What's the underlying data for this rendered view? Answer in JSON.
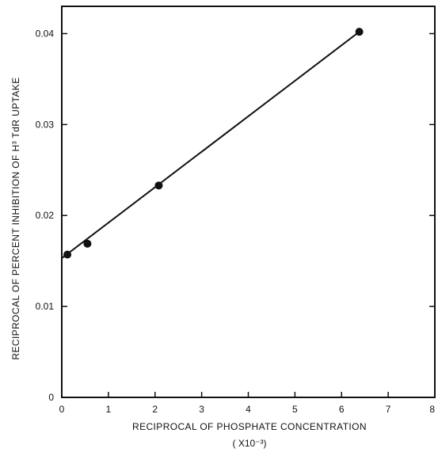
{
  "chart_data": {
    "type": "scatter",
    "title": "",
    "xlabel": "RECIPROCAL OF PHOSPHATE CONCENTRATION",
    "xlabel_unit": "( X10⁻³)",
    "ylabel": "RECIPROCAL OF PERCENT INHIBITION OF H³ TdR UPTAKE",
    "xlim": [
      0,
      8
    ],
    "ylim": [
      0,
      0.043
    ],
    "x_ticks": [
      0,
      1,
      2,
      3,
      4,
      5,
      6,
      7,
      8
    ],
    "x_tick_labels": [
      "0",
      "1",
      "2",
      "3",
      "4",
      "5",
      "6",
      "7",
      "8"
    ],
    "y_ticks": [
      0,
      0.01,
      0.02,
      0.03,
      0.04
    ],
    "y_tick_labels": [
      "0",
      "0.01",
      "0.02",
      "0.03",
      "0.04"
    ],
    "grid": false,
    "series": [
      {
        "points": [
          {
            "x": 0.12,
            "y": 0.0157
          },
          {
            "x": 0.55,
            "y": 0.0169
          },
          {
            "x": 2.08,
            "y": 0.0233
          },
          {
            "x": 6.38,
            "y": 0.0402
          }
        ],
        "fit_line": {
          "x": [
            0,
            6.38
          ],
          "y": [
            0.0153,
            0.0402
          ]
        }
      }
    ],
    "colors": {
      "ink": "#111111",
      "background": "#ffffff"
    }
  }
}
